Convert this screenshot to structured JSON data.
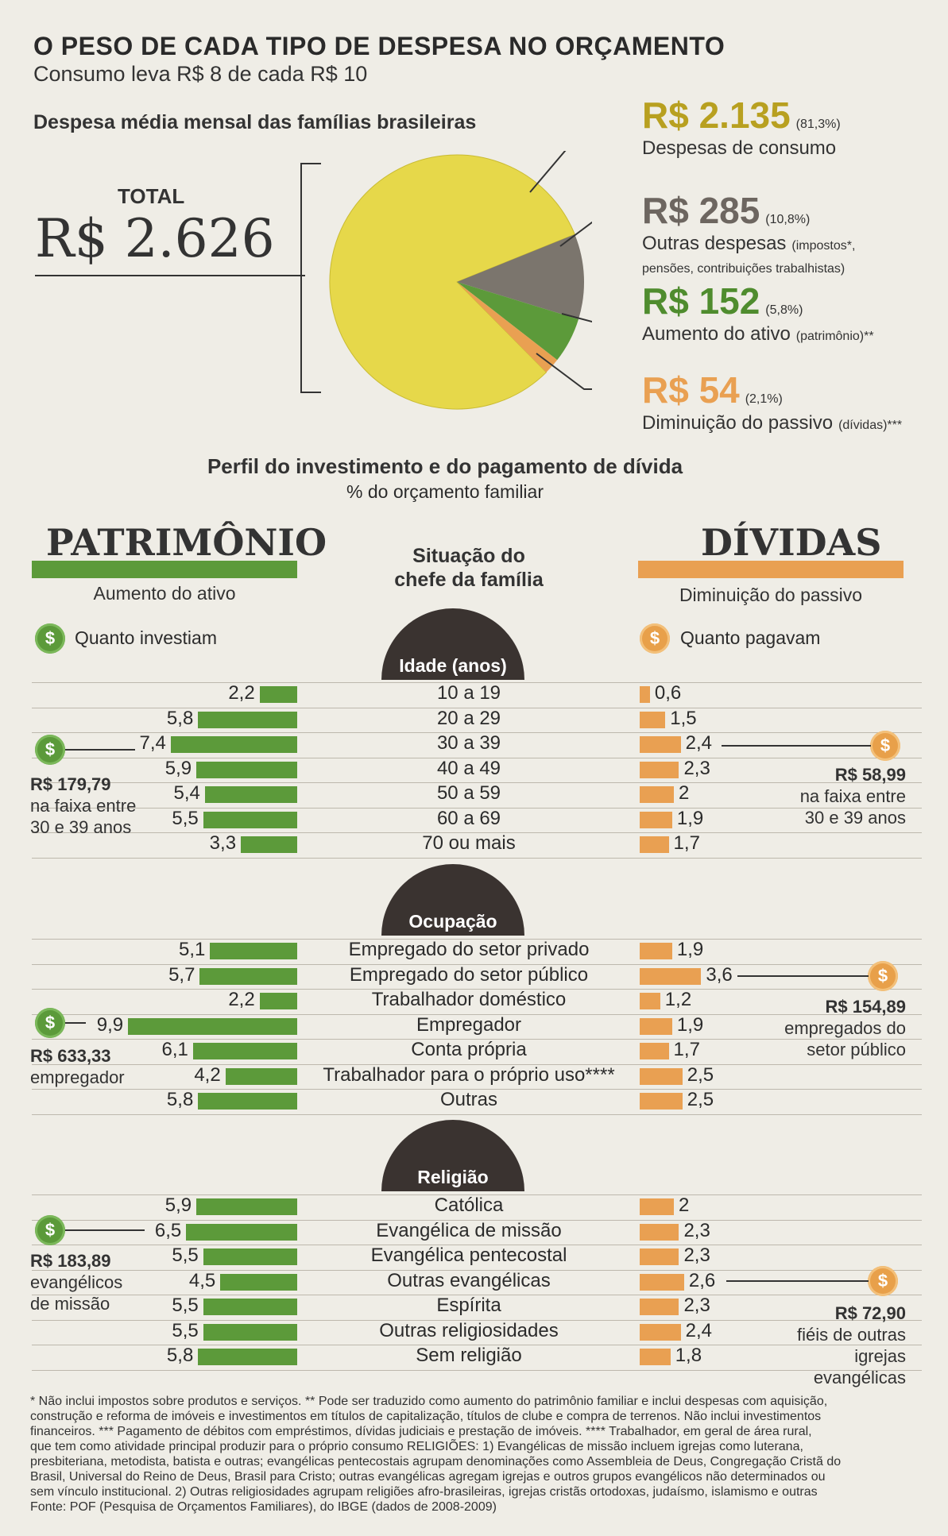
{
  "header": {
    "title": "O PESO DE CADA TIPO DE DESPESA NO ORÇAMENTO",
    "subtitle": "Consumo leva R$ 8 de cada R$ 10",
    "pie_heading": "Despesa média mensal das famílias brasileiras"
  },
  "total": {
    "label": "TOTAL",
    "value": "R$ 2.626"
  },
  "colors": {
    "green": "#5c9a3a",
    "orange": "#e9a052",
    "yellow": "#e6d84a",
    "gray": "#7b756d",
    "dark": "#3a3330"
  },
  "legend": {
    "consumo": {
      "value": "R$ 2.135",
      "pct": "(81,3%)",
      "desc": "Despesas de consumo"
    },
    "outras": {
      "value": "R$ 285",
      "pct": "(10,8%)",
      "desc": "Outras despesas",
      "desc_small": "(impostos*,",
      "desc2": "pensões, contribuições trabalhistas)"
    },
    "ativo": {
      "value": "R$ 152",
      "pct": "(5,8%)",
      "desc": "Aumento do ativo",
      "desc_small": "(patrimônio)**"
    },
    "passivo": {
      "value": "R$ 54",
      "pct": "(2,1%)",
      "desc": "Diminuição do passivo",
      "desc_small": "(dívidas)***"
    }
  },
  "perfil": {
    "title": "Perfil do investimento e do pagamento de dívida",
    "subtitle": "% do orçamento familiar"
  },
  "columns": {
    "left_title": "PATRIMÔNIO",
    "left_sub": "Aumento do ativo",
    "left_coin_label": "Quanto investiam",
    "center_title": "Situação do",
    "center_title2": "chefe da família",
    "right_title": "DÍVIDAS",
    "right_sub": "Diminuição do passivo",
    "right_coin_label": "Quanto pagavam",
    "coin_symbol": "$"
  },
  "chart_data": [
    {
      "type": "pie",
      "title": "Despesa média mensal das famílias brasileiras",
      "categories": [
        "Despesas de consumo",
        "Outras despesas",
        "Aumento do ativo",
        "Diminuição do passivo"
      ],
      "values": [
        2135,
        285,
        152,
        54
      ],
      "percents": [
        81.3,
        10.8,
        5.8,
        2.1
      ],
      "total": 2626
    },
    {
      "type": "bar",
      "group": "Idade (anos)",
      "categories": [
        "10 a 19",
        "20 a 29",
        "30 a 39",
        "40 a 49",
        "50 a 59",
        "60 a 69",
        "70 ou mais"
      ],
      "series": [
        {
          "name": "Aumento do ativo",
          "values": [
            2.2,
            5.8,
            7.4,
            5.9,
            5.4,
            5.5,
            3.3
          ],
          "labels": [
            "2,2",
            "5,8",
            "7,4",
            "5,9",
            "5,4",
            "5,5",
            "3,3"
          ]
        },
        {
          "name": "Diminuição do passivo",
          "values": [
            0.6,
            1.5,
            2.4,
            2.3,
            2,
            1.9,
            1.7
          ],
          "labels": [
            "0,6",
            "1,5",
            "2,4",
            "2,3",
            "2",
            "1,9",
            "1,7"
          ]
        }
      ]
    },
    {
      "type": "bar",
      "group": "Ocupação",
      "categories": [
        "Empregado do setor privado",
        "Empregado do setor público",
        "Trabalhador doméstico",
        "Empregador",
        "Conta própria",
        "Trabalhador para o próprio uso****",
        "Outras"
      ],
      "series": [
        {
          "name": "Aumento do ativo",
          "values": [
            5.1,
            5.7,
            2.2,
            9.9,
            6.1,
            4.2,
            5.8
          ],
          "labels": [
            "5,1",
            "5,7",
            "2,2",
            "9,9",
            "6,1",
            "4,2",
            "5,8"
          ]
        },
        {
          "name": "Diminuição do passivo",
          "values": [
            1.9,
            3.6,
            1.2,
            1.9,
            1.7,
            2.5,
            2.5
          ],
          "labels": [
            "1,9",
            "3,6",
            "1,2",
            "1,9",
            "1,7",
            "2,5",
            "2,5"
          ]
        }
      ]
    },
    {
      "type": "bar",
      "group": "Religião",
      "categories": [
        "Católica",
        "Evangélica de missão",
        "Evangélica pentecostal",
        "Outras evangélicas",
        "Espírita",
        "Outras religiosidades",
        "Sem religião"
      ],
      "series": [
        {
          "name": "Aumento do ativo",
          "values": [
            5.9,
            6.5,
            5.5,
            4.5,
            5.5,
            5.5,
            5.8
          ],
          "labels": [
            "5,9",
            "6,5",
            "5,5",
            "4,5",
            "5,5",
            "5,5",
            "5,8"
          ]
        },
        {
          "name": "Diminuição do passivo",
          "values": [
            2,
            2.3,
            2.3,
            2.6,
            2.3,
            2.4,
            1.8
          ],
          "labels": [
            "2",
            "2,3",
            "2,3",
            "2,6",
            "2,3",
            "2,4",
            "1,8"
          ]
        }
      ]
    }
  ],
  "callouts": {
    "idade_left": [
      "R$ 179,79",
      "na faixa entre",
      "30 e 39 anos"
    ],
    "idade_right": [
      "R$ 58,99",
      "na faixa entre",
      "30 e 39 anos"
    ],
    "ocup_left": [
      "R$ 633,33",
      "empregador"
    ],
    "ocup_right": [
      "R$ 154,89",
      "empregados do",
      "setor público"
    ],
    "relig_left": [
      "R$ 183,89",
      "evangélicos",
      "de missão"
    ],
    "relig_right": [
      "R$ 72,90",
      "fiéis de  outras",
      "igrejas",
      "evangélicas"
    ]
  },
  "footnotes": [
    "* Não inclui impostos sobre produtos e serviços. ** Pode ser traduzido como aumento do patrimônio familiar e inclui despesas com aquisição,",
    "construção e reforma de imóveis e investimentos em títulos de capitalização, títulos de clube e compra de terrenos. Não inclui investimentos",
    "financeiros. *** Pagamento de débitos com empréstimos, dívidas judiciais e prestação de imóveis. **** Trabalhador, em geral de área rural,",
    "que tem como atividade principal produzir para o próprio consumo    RELIGIÕES: 1) Evangélicas de missão incluem igrejas como luterana,",
    "presbiteriana, metodista, batista e outras; evangélicas pentecostais agrupam denominações como Assembleia de Deus, Congregação Cristã do",
    "Brasil, Universal do Reino de Deus, Brasil para Cristo; outras evangélicas agregam igrejas e outros grupos evangélicos não determinados ou",
    "sem vínculo institucional. 2) Outras religiosidades agrupam religiões afro-brasileiras, igrejas cristãs ortodoxas, judaísmo, islamismo e outras",
    "Fonte: POF (Pesquisa de Orçamentos Familiares), do IBGE (dados de 2008-2009)"
  ]
}
